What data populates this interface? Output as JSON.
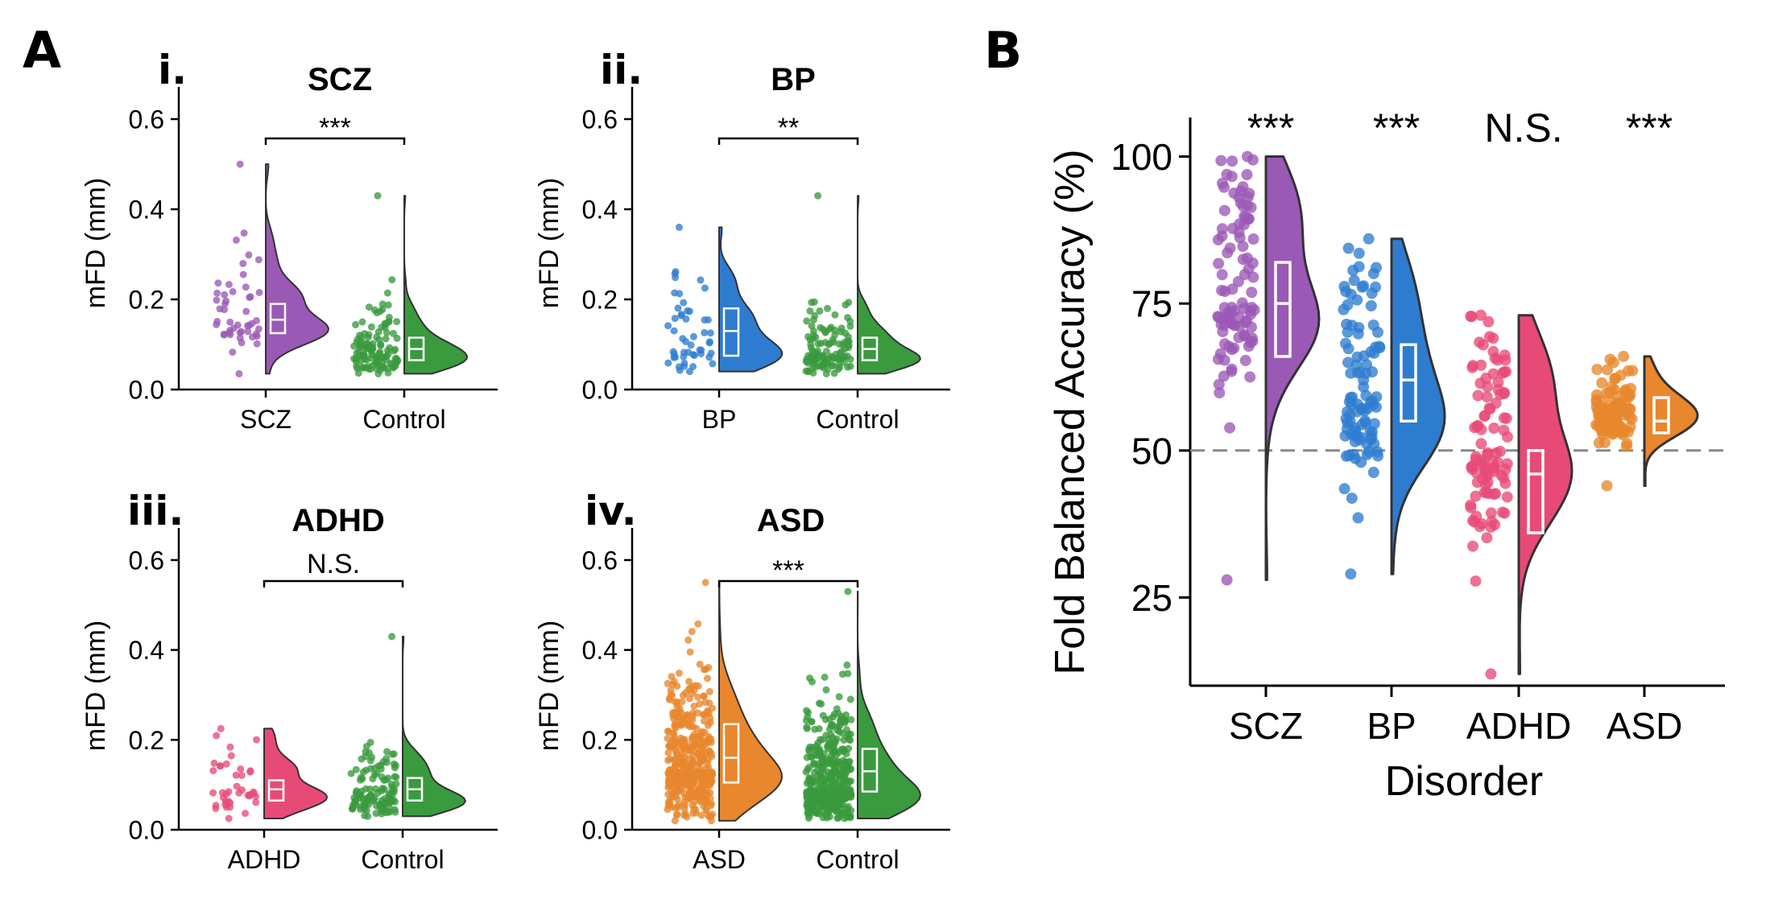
{
  "panel_a": {
    "letter": "A",
    "subpanels": [
      {
        "roman": "i.",
        "title": "SCZ",
        "ylabel": "mFD (mm)",
        "significance": "***"
      },
      {
        "roman": "ii.",
        "title": "BP",
        "ylabel": "mFD (mm)",
        "significance": "**"
      },
      {
        "roman": "iii.",
        "title": "ADHD",
        "ylabel": "mFD (mm)",
        "significance": "N.S."
      },
      {
        "roman": "iv.",
        "title": "ASD",
        "ylabel": "mFD (mm)",
        "significance": "***"
      }
    ]
  },
  "panel_b": {
    "letter": "B",
    "xlabel": "Disorder",
    "ylabel": "Fold Balanced Accuracy (%)",
    "significance": [
      "***",
      "***",
      "N.S.",
      "***"
    ]
  },
  "colors": {
    "SCZ": "#9b59b6",
    "BP": "#2e7ccf",
    "ADHD": "#e84a77",
    "ASD": "#e8872d",
    "Control": "#3a9a3e"
  },
  "chart_data": [
    {
      "type": "raincloud",
      "title": "SCZ",
      "ylabel": "mFD (mm)",
      "ylim": [
        0,
        0.65
      ],
      "yticks": [
        0.0,
        0.2,
        0.4,
        0.6
      ],
      "categories": [
        "SCZ",
        "Control"
      ],
      "groups": [
        {
          "name": "SCZ",
          "n": 48,
          "min": 0.035,
          "max": 0.5,
          "q1": 0.125,
          "median": 0.155,
          "q3": 0.19,
          "mode": 0.155,
          "spread": 0.05
        },
        {
          "name": "Control",
          "n": 120,
          "min": 0.035,
          "max": 0.43,
          "q1": 0.065,
          "median": 0.09,
          "q3": 0.115,
          "mode": 0.075,
          "spread": 0.035
        }
      ],
      "significance": "***"
    },
    {
      "type": "raincloud",
      "title": "BP",
      "ylabel": "mFD (mm)",
      "ylim": [
        0,
        0.65
      ],
      "yticks": [
        0.0,
        0.2,
        0.4,
        0.6
      ],
      "categories": [
        "BP",
        "Control"
      ],
      "groups": [
        {
          "name": "BP",
          "n": 50,
          "min": 0.04,
          "max": 0.36,
          "q1": 0.075,
          "median": 0.13,
          "q3": 0.18,
          "mode": 0.085,
          "spread": 0.05
        },
        {
          "name": "Control",
          "n": 120,
          "min": 0.035,
          "max": 0.43,
          "q1": 0.065,
          "median": 0.09,
          "q3": 0.115,
          "mode": 0.075,
          "spread": 0.035
        }
      ],
      "significance": "**"
    },
    {
      "type": "raincloud",
      "title": "ADHD",
      "ylabel": "mFD (mm)",
      "ylim": [
        0,
        0.65
      ],
      "yticks": [
        0.0,
        0.2,
        0.4,
        0.6
      ],
      "categories": [
        "ADHD",
        "Control"
      ],
      "groups": [
        {
          "name": "ADHD",
          "n": 40,
          "min": 0.025,
          "max": 0.225,
          "q1": 0.065,
          "median": 0.09,
          "q3": 0.11,
          "mode": 0.085,
          "spread": 0.04
        },
        {
          "name": "Control",
          "n": 120,
          "min": 0.03,
          "max": 0.43,
          "q1": 0.065,
          "median": 0.09,
          "q3": 0.115,
          "mode": 0.075,
          "spread": 0.035
        }
      ],
      "significance": "N.S."
    },
    {
      "type": "raincloud",
      "title": "ASD",
      "ylabel": "mFD (mm)",
      "ylim": [
        0,
        0.65
      ],
      "yticks": [
        0.0,
        0.2,
        0.4,
        0.6
      ],
      "categories": [
        "ASD",
        "Control"
      ],
      "groups": [
        {
          "name": "ASD",
          "n": 420,
          "min": 0.02,
          "max": 0.55,
          "q1": 0.105,
          "median": 0.16,
          "q3": 0.235,
          "mode": 0.13,
          "spread": 0.07
        },
        {
          "name": "Control",
          "n": 420,
          "min": 0.025,
          "max": 0.53,
          "q1": 0.085,
          "median": 0.13,
          "q3": 0.18,
          "mode": 0.09,
          "spread": 0.06
        }
      ],
      "significance": "***"
    },
    {
      "type": "raincloud",
      "xlabel": "Disorder",
      "ylabel": "Fold Balanced Accuracy (%)",
      "ylim": [
        10,
        105
      ],
      "yticks": [
        25,
        50,
        75,
        100
      ],
      "reference_line": 50,
      "categories": [
        "SCZ",
        "BP",
        "ADHD",
        "ASD"
      ],
      "groups": [
        {
          "name": "SCZ",
          "n": 100,
          "min": 28,
          "max": 100,
          "q1": 66,
          "median": 75,
          "q3": 82,
          "mode": 76,
          "spread": 11
        },
        {
          "name": "BP",
          "n": 100,
          "min": 29,
          "max": 86,
          "q1": 55,
          "median": 62,
          "q3": 68,
          "mode": 60,
          "spread": 11
        },
        {
          "name": "ADHD",
          "n": 100,
          "min": 12,
          "max": 73,
          "q1": 36,
          "median": 46,
          "q3": 50,
          "mode": 49,
          "spread": 10
        },
        {
          "name": "ASD",
          "n": 100,
          "min": 44,
          "max": 66,
          "q1": 53,
          "median": 55,
          "q3": 59,
          "mode": 56,
          "spread": 4
        }
      ],
      "significance": [
        "***",
        "***",
        "N.S.",
        "***"
      ]
    }
  ]
}
